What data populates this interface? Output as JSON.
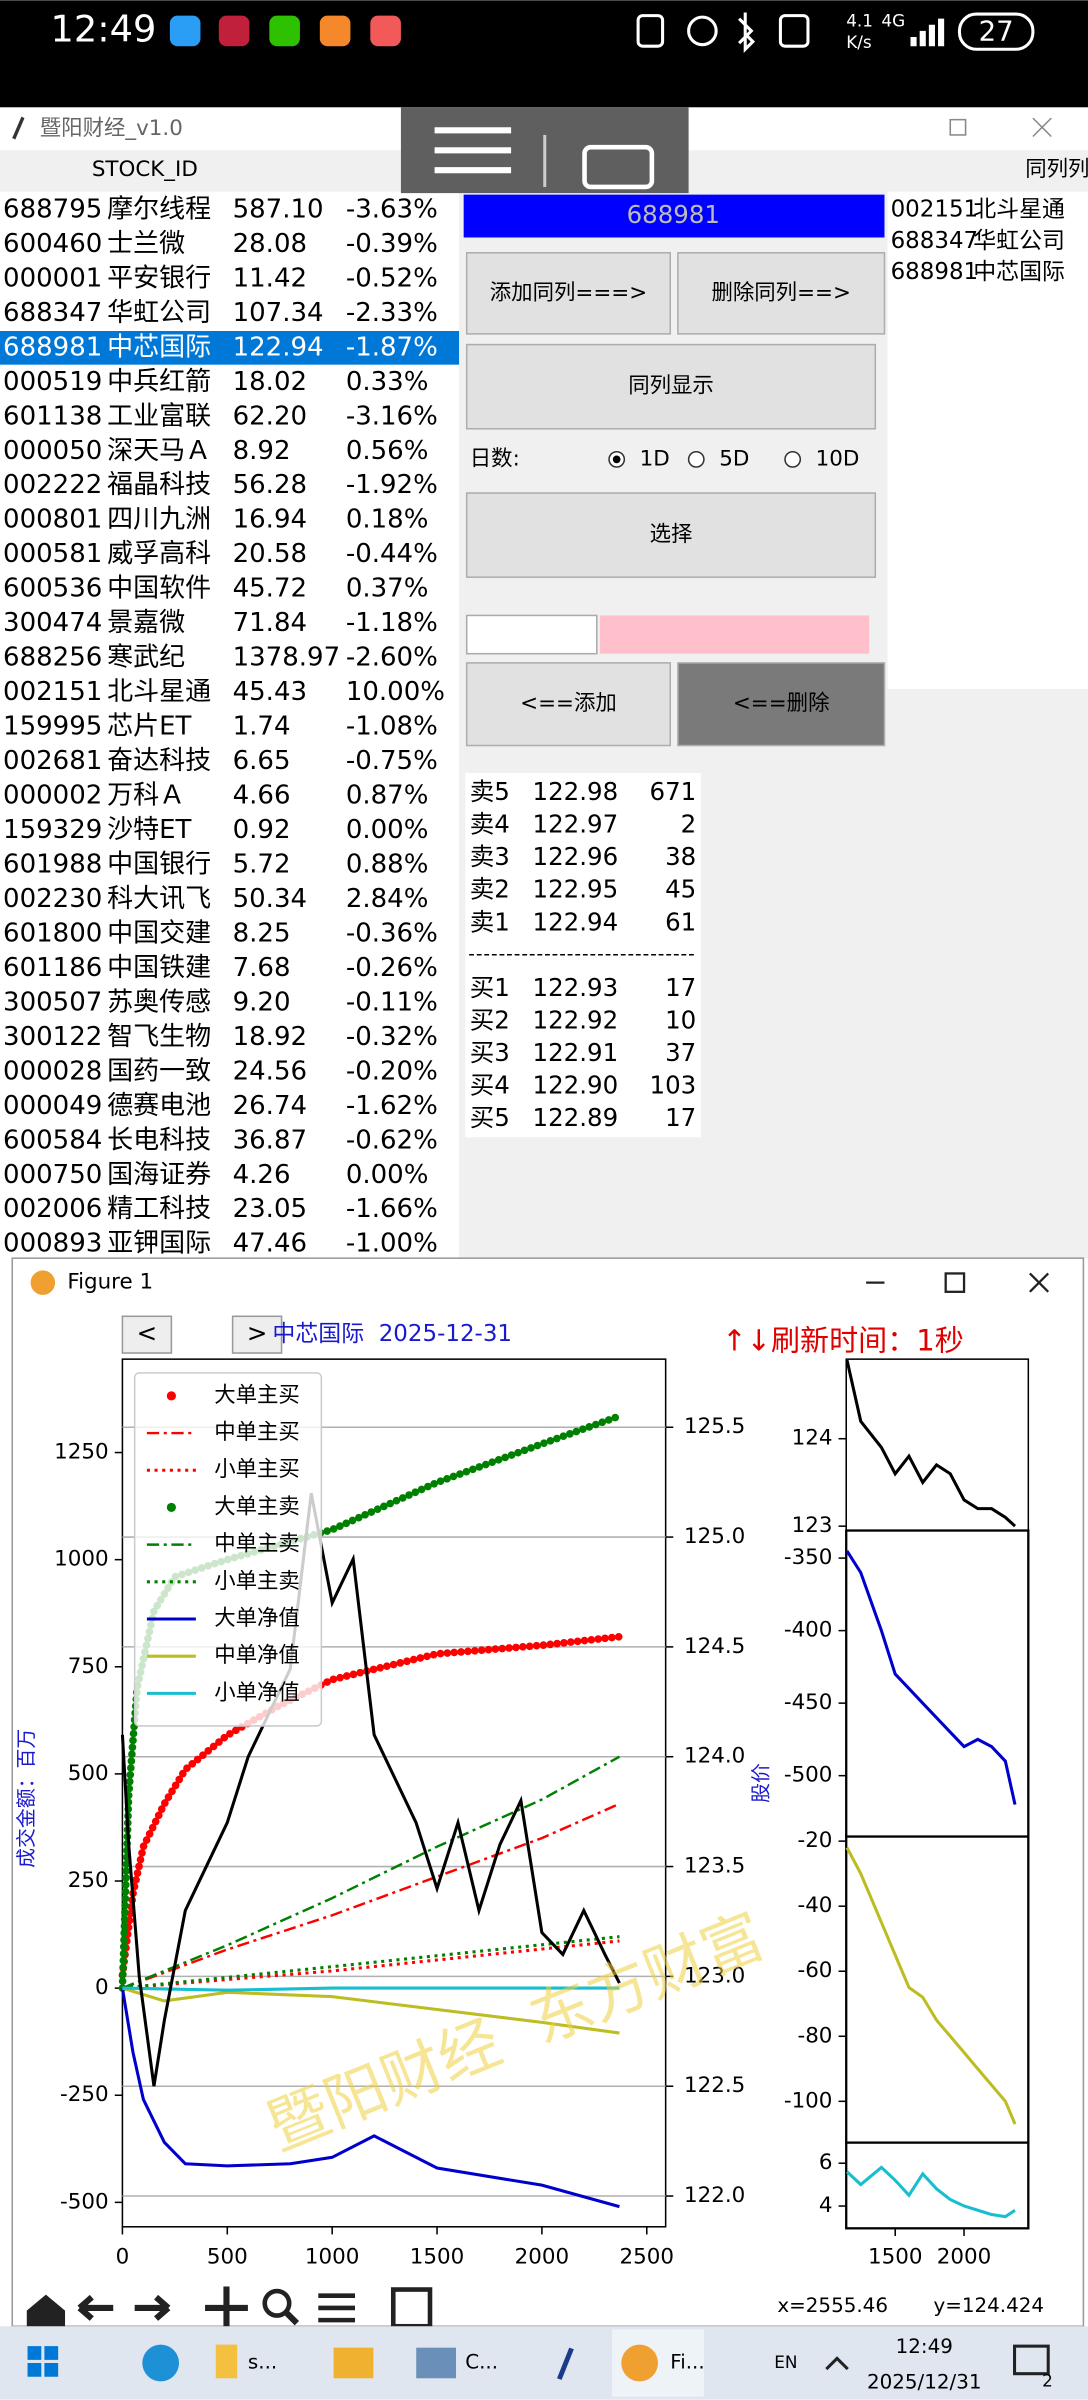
{
  "status_bar": {
    "time": "12:49",
    "speed": "4.1",
    "speed_unit": "K/s",
    "network": "4G",
    "battery": "27"
  },
  "app": {
    "title": "暨阳财经_v1.0",
    "stock_id_header": "STOCK_ID",
    "right_header": "同列列",
    "stocks": [
      [
        "688795",
        "摩尔线程",
        "587.10",
        "-3.63%"
      ],
      [
        "600460",
        "士兰微",
        "28.08",
        "-0.39%"
      ],
      [
        "000001",
        "平安银行",
        "11.42",
        "-0.52%"
      ],
      [
        "688347",
        "华虹公司",
        "107.34",
        "-2.33%"
      ],
      [
        "688981",
        "中芯国际",
        "122.94",
        "-1.87%"
      ],
      [
        "000519",
        "中兵红箭",
        "18.02",
        "0.33%"
      ],
      [
        "601138",
        "工业富联",
        "62.20",
        "-3.16%"
      ],
      [
        "000050",
        "深天马Ａ",
        "8.92",
        "0.56%"
      ],
      [
        "002222",
        "福晶科技",
        "56.28",
        "-1.92%"
      ],
      [
        "000801",
        "四川九洲",
        "16.94",
        "0.18%"
      ],
      [
        "000581",
        "威孚高科",
        "20.58",
        "-0.44%"
      ],
      [
        "600536",
        "中国软件",
        "45.72",
        "0.37%"
      ],
      [
        "300474",
        "景嘉微",
        "71.84",
        "-1.18%"
      ],
      [
        "688256",
        "寒武纪",
        "1378.97",
        "-2.60%"
      ],
      [
        "002151",
        "北斗星通",
        "45.43",
        "10.00%"
      ],
      [
        "159995",
        "芯片ET",
        "1.74",
        "-1.08%"
      ],
      [
        "002681",
        "奋达科技",
        "6.65",
        "-0.75%"
      ],
      [
        "000002",
        "万科Ａ",
        "4.66",
        "0.87%"
      ],
      [
        "159329",
        "沙特ET",
        "0.92",
        "0.00%"
      ],
      [
        "601988",
        "中国银行",
        "5.72",
        "0.88%"
      ],
      [
        "002230",
        "科大讯飞",
        "50.34",
        "2.84%"
      ],
      [
        "601800",
        "中国交建",
        "8.25",
        "-0.36%"
      ],
      [
        "601186",
        "中国铁建",
        "7.68",
        "-0.26%"
      ],
      [
        "300507",
        "苏奥传感",
        "9.20",
        "-0.11%"
      ],
      [
        "300122",
        "智飞生物",
        "18.92",
        "-0.32%"
      ],
      [
        "000028",
        "国药一致",
        "24.56",
        "-0.20%"
      ],
      [
        "000049",
        "德赛电池",
        "26.74",
        "-1.62%"
      ],
      [
        "600584",
        "长电科技",
        "36.87",
        "-0.62%"
      ],
      [
        "000750",
        "国海证券",
        "4.26",
        "0.00%"
      ],
      [
        "002006",
        "精工科技",
        "23.05",
        "-1.66%"
      ],
      [
        "000893",
        "亚钾国际",
        "47.46",
        "-1.00%"
      ]
    ],
    "selected_code": "688981",
    "buttons": {
      "add_group": "添加同列===>",
      "remove_group": "删除同列==>",
      "show_group": "同列显示",
      "select": "选择",
      "add": "<==添加",
      "remove": "<==删除"
    },
    "days_label": "日数:",
    "day_options": [
      {
        "label": "1D",
        "checked": true
      },
      {
        "label": "5D",
        "checked": false
      },
      {
        "label": "10D",
        "checked": false
      }
    ],
    "group_list": [
      [
        "002151",
        "北斗星通"
      ],
      [
        "688347",
        "华虹公司"
      ],
      [
        "688981",
        "中芯国际"
      ]
    ],
    "order_book": {
      "asks": [
        [
          "卖5",
          "122.98",
          "671"
        ],
        [
          "卖4",
          "122.97",
          "2"
        ],
        [
          "卖3",
          "122.96",
          "38"
        ],
        [
          "卖2",
          "122.95",
          "45"
        ],
        [
          "卖1",
          "122.94",
          "61"
        ]
      ],
      "separator": "------------------------------",
      "bids": [
        [
          "买1",
          "122.93",
          "17"
        ],
        [
          "买2",
          "122.92",
          "10"
        ],
        [
          "买3",
          "122.91",
          "37"
        ],
        [
          "买4",
          "122.90",
          "103"
        ],
        [
          "买5",
          "122.89",
          "17"
        ]
      ]
    }
  },
  "figure": {
    "window_title": "Figure 1",
    "title": "中芯国际  2025-12-31",
    "prev": "<",
    "next": ">",
    "refresh": "↑↓刷新时间：1秒",
    "watermark": "暨阳财经  东方财富",
    "coord_x": "x=2555.46",
    "coord_y": "y=124.424",
    "main_chart": {
      "type": "line",
      "ylabel": "成交金额：百万",
      "y2label": "股价",
      "grid": true,
      "xlim": [
        0,
        2590
      ],
      "xticks": [
        0,
        500,
        1000,
        1500,
        2000,
        2500
      ],
      "ylim": [
        -557,
        1468
      ],
      "yticks": [
        -500,
        -250,
        0,
        250,
        500,
        750,
        1000,
        1250
      ],
      "y2lim": [
        121.86,
        125.81
      ],
      "y2ticks": [
        {
          "value": 122,
          "label": "122.0"
        },
        122.5,
        {
          "value": 123,
          "label": "123.0"
        },
        123.5,
        {
          "value": 124,
          "label": "124.0"
        },
        124.5,
        {
          "value": 125,
          "label": "125.0"
        },
        125.5
      ],
      "series": [
        {
          "name": "大单主买",
          "color": "#ff0000",
          "style": "dots",
          "x": [
            0,
            50,
            100,
            200,
            300,
            500,
            750,
            1000,
            1500,
            2000,
            2370
          ],
          "values": [
            30,
            220,
            330,
            430,
            510,
            590,
            660,
            720,
            780,
            800,
            820
          ]
        },
        {
          "name": "中单主买",
          "color": "#ff0000",
          "style": "dashdot",
          "x": [
            0,
            500,
            1000,
            1500,
            2000,
            2370
          ],
          "values": [
            0,
            90,
            170,
            260,
            350,
            430
          ]
        },
        {
          "name": "小单主买",
          "color": "#ff0000",
          "style": "dotted",
          "x": [
            0,
            1000,
            2370
          ],
          "values": [
            0,
            40,
            110
          ]
        },
        {
          "name": "大单主卖",
          "color": "#008000",
          "style": "dots",
          "x": [
            0,
            30,
            70,
            150,
            250,
            500,
            1000,
            1500,
            2000,
            2370
          ],
          "values": [
            0,
            450,
            700,
            880,
            960,
            1000,
            1070,
            1180,
            1270,
            1335
          ]
        },
        {
          "name": "中单主卖",
          "color": "#008000",
          "style": "dashdot",
          "x": [
            0,
            500,
            1000,
            1500,
            2000,
            2370
          ],
          "values": [
            0,
            100,
            210,
            330,
            440,
            540
          ]
        },
        {
          "name": "小单主卖",
          "color": "#008000",
          "style": "dotted",
          "x": [
            0,
            1000,
            2370
          ],
          "values": [
            0,
            50,
            120
          ]
        },
        {
          "name": "大单净值",
          "color": "#0000cc",
          "style": "solid",
          "x": [
            0,
            50,
            100,
            200,
            300,
            500,
            800,
            1000,
            1200,
            1500,
            2000,
            2370
          ],
          "values": [
            0,
            -150,
            -260,
            -360,
            -410,
            -415,
            -410,
            -395,
            -345,
            -420,
            -460,
            -510
          ]
        },
        {
          "name": "中单净值",
          "color": "#bcbd22",
          "style": "solid",
          "x": [
            0,
            200,
            500,
            1000,
            1500,
            2000,
            2370
          ],
          "values": [
            0,
            -30,
            -10,
            -20,
            -50,
            -80,
            -105
          ]
        },
        {
          "name": "小单净值",
          "color": "#17becf",
          "style": "solid",
          "x": [
            0,
            500,
            1000,
            2000,
            2370
          ],
          "values": [
            0,
            -5,
            0,
            0,
            0
          ]
        },
        {
          "color": "#000000",
          "style": "solid",
          "axis": "y2",
          "x": [
            0,
            30,
            80,
            150,
            200,
            300,
            400,
            500,
            600,
            800,
            900,
            1000,
            1100,
            1200,
            1300,
            1400,
            1500,
            1600,
            1700,
            1800,
            1900,
            2000,
            2100,
            2200,
            2300,
            2370
          ],
          "values": [
            124.1,
            123.6,
            123.0,
            122.5,
            122.8,
            123.3,
            123.5,
            123.7,
            124.0,
            124.4,
            125.2,
            124.7,
            124.9,
            124.1,
            123.9,
            123.7,
            123.4,
            123.7,
            123.3,
            123.6,
            123.8,
            123.2,
            123.1,
            123.3,
            123.1,
            122.97
          ]
        }
      ]
    },
    "side_panels": {
      "xlim": [
        1144,
        2467
      ],
      "xticks": [
        1500,
        2000
      ],
      "panels": [
        {
          "ylim": [
            122.95,
            124.91
          ],
          "yticks": [
            123,
            124
          ],
          "series": {
            "color": "#000000",
            "x": [
              1150,
              1250,
              1400,
              1500,
              1600,
              1700,
              1800,
              1900,
              2000,
              2100,
              2200,
              2300,
              2370
            ],
            "values": [
              124.9,
              124.2,
              123.9,
              123.6,
              123.8,
              123.5,
              123.7,
              123.6,
              123.3,
              123.2,
              123.2,
              123.1,
              123.0
            ]
          }
        },
        {
          "ylim": [
            -542,
            -331
          ],
          "yticks": [
            -500,
            -450,
            -400,
            -350
          ],
          "series": {
            "color": "#0000cc",
            "x": [
              1150,
              1250,
              1400,
              1500,
              1600,
              1700,
              1800,
              1900,
              2000,
              2100,
              2200,
              2300,
              2370
            ],
            "values": [
              -345,
              -360,
              -400,
              -430,
              -440,
              -450,
              -460,
              -470,
              -480,
              -475,
              -480,
              -490,
              -520
            ]
          }
        },
        {
          "ylim": [
            -112.7,
            -18.6
          ],
          "yticks": [
            -100,
            -80,
            -60,
            -40,
            -20
          ],
          "series": {
            "color": "#bcbd22",
            "x": [
              1150,
              1250,
              1400,
              1500,
              1600,
              1700,
              1800,
              1900,
              2000,
              2100,
              2200,
              2300,
              2370
            ],
            "values": [
              -22,
              -30,
              -45,
              -55,
              -65,
              -68,
              -75,
              -80,
              -85,
              -90,
              -95,
              -100,
              -107
            ]
          }
        },
        {
          "ylim": [
            2.96,
            6.96
          ],
          "yticks": [
            4,
            6
          ],
          "series": {
            "color": "#17becf",
            "x": [
              1150,
              1250,
              1400,
              1500,
              1600,
              1700,
              1800,
              1900,
              2000,
              2100,
              2200,
              2300,
              2370
            ],
            "values": [
              5.6,
              5.0,
              5.8,
              5.2,
              4.5,
              5.5,
              4.8,
              4.3,
              4.0,
              3.8,
              3.6,
              3.5,
              3.8
            ]
          }
        }
      ]
    }
  },
  "taskbar": {
    "apps": [
      "s...",
      "C...",
      "Fi..."
    ],
    "lang": "EN",
    "time": "12:49",
    "date": "2025/12/31",
    "notifications": "2"
  }
}
